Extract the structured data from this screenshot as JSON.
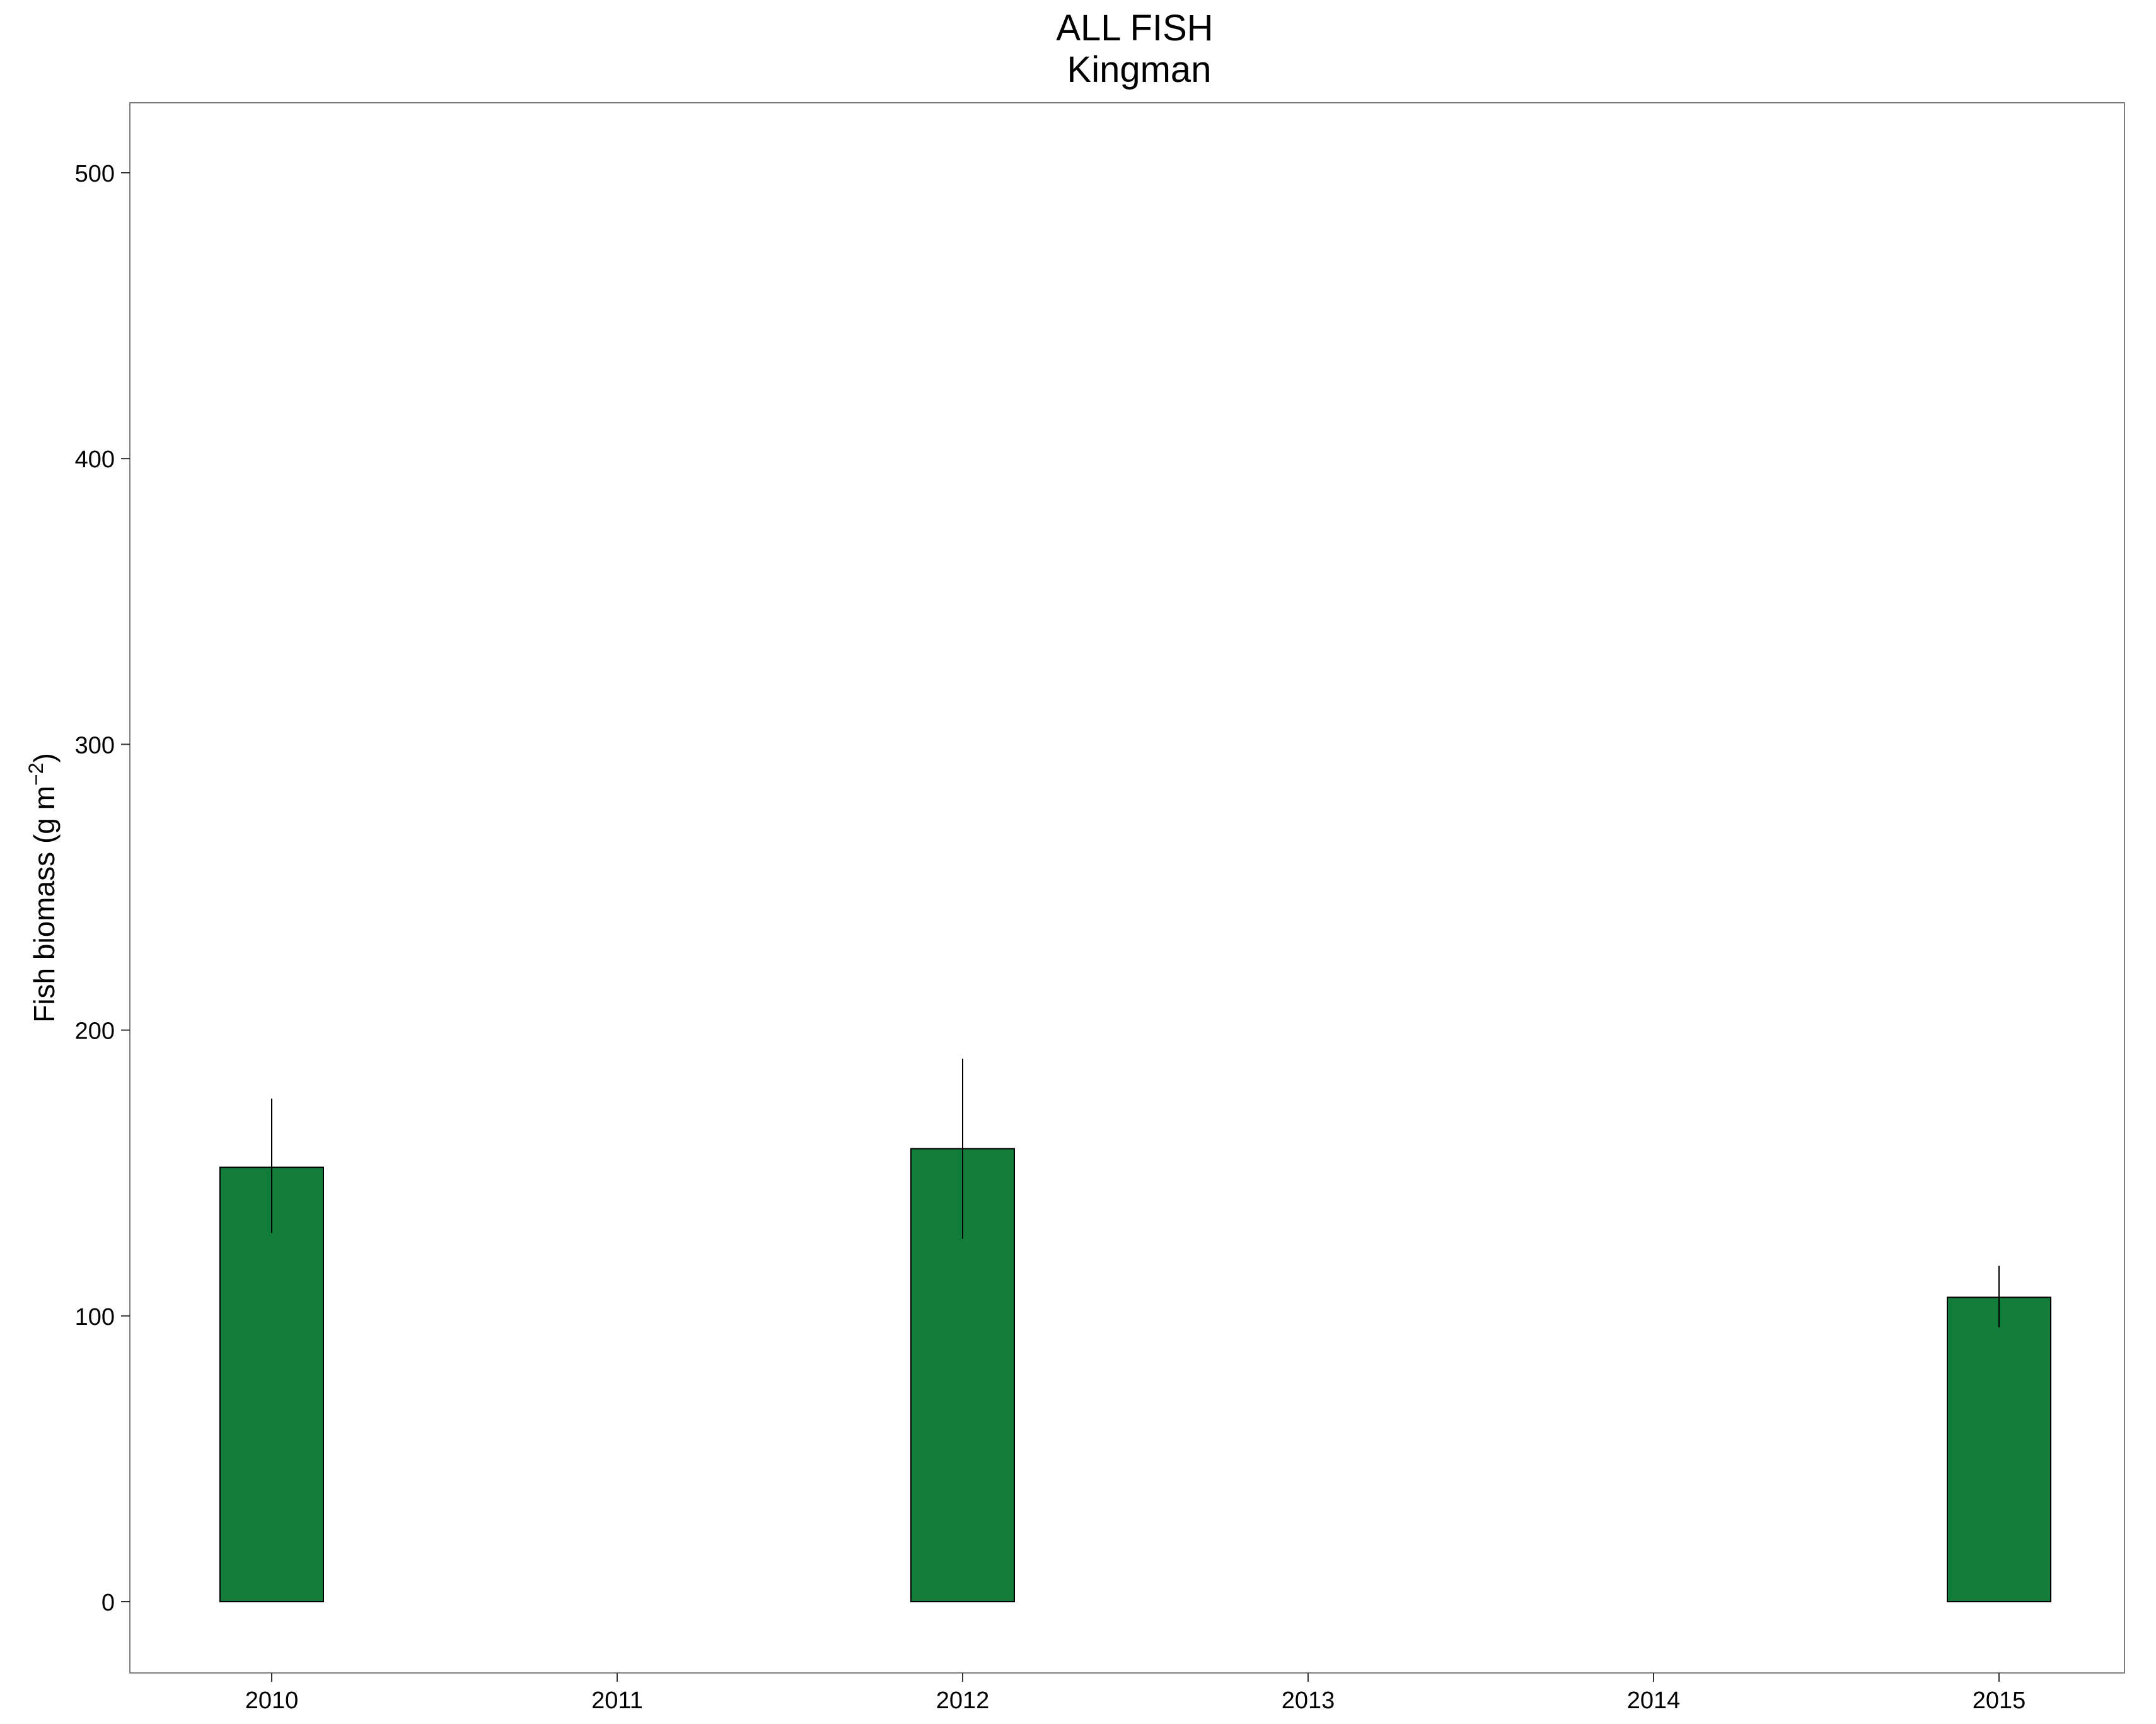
{
  "chart_data": {
    "type": "bar",
    "title": "ALL FISH",
    "subtitle": "Kingman",
    "xlabel": "",
    "ylabel": "Fish biomass (g m",
    "ylabel_superscript": "−2",
    "ylabel_suffix": ")",
    "categories": [
      "2010",
      "2011",
      "2012",
      "2013",
      "2014",
      "2015"
    ],
    "values": [
      152,
      null,
      158.5,
      null,
      null,
      106.5
    ],
    "error_low": [
      129,
      null,
      127,
      null,
      null,
      96
    ],
    "error_high": [
      176,
      null,
      190,
      null,
      null,
      117.5
    ],
    "ylim": [
      -25,
      525
    ],
    "yticks": [
      0,
      100,
      200,
      300,
      400,
      500
    ],
    "grid": false,
    "legend": "none",
    "colors": {
      "bar_fill": "#127c3a",
      "bar_stroke": "#000000",
      "error_bar": "#000000",
      "panel_border": "#7f7f7f"
    }
  }
}
